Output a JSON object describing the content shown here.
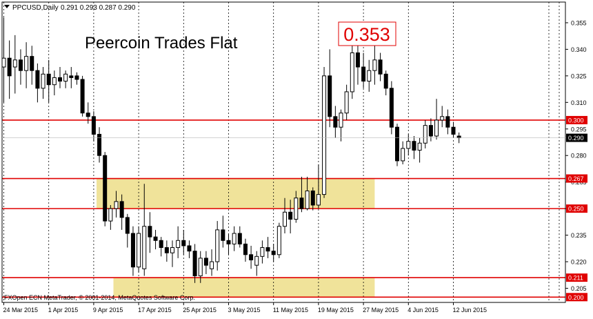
{
  "header": {
    "symbol_label": "PPCUSD,Daily",
    "ohlc_label": "0.291 0.293 0.287 0.290"
  },
  "annotation": {
    "title": "Peercoin Trades Flat",
    "high_label": "0.353"
  },
  "footer": {
    "copyright": "FXOpen ECN MetaTrader, © 2001-2014, MetaQuotes Software Corp."
  },
  "colors": {
    "background": "#ffffff",
    "candle_stroke": "#000000",
    "bull_body": "#ffffff",
    "bear_body": "#000000",
    "level_line": "#e00000",
    "zone_fill": "#f0e39a",
    "price_tag_bg": "#e00000",
    "current_price_bg": "#000000",
    "grid": "#000000"
  },
  "chart_data": {
    "type": "candlestick",
    "title": "Peercoin Trades Flat",
    "symbol": "PPCUSD",
    "timeframe": "Daily",
    "ylim": [
      0.197,
      0.362
    ],
    "y_ticks": [
      "0.355",
      "0.340",
      "0.325",
      "0.310",
      "0.295",
      "0.280",
      "0.265",
      "0.250",
      "0.235",
      "0.220",
      "0.205"
    ],
    "x_tick_labels": [
      "24 Mar 2015",
      "1 Apr 2015",
      "9 Apr 2015",
      "17 Apr 2015",
      "25 Apr 2015",
      "3 May 2015",
      "11 May 2015",
      "19 May 2015",
      "27 May 2015",
      "4 Jun 2015",
      "12 Jun 2015"
    ],
    "x_tick_index": [
      0,
      8,
      16,
      24,
      32,
      40,
      48,
      56,
      64,
      72,
      80
    ],
    "grid": "vertical dotted",
    "levels": [
      {
        "value": 0.3,
        "label": "0.300"
      },
      {
        "value": 0.267,
        "label": "0.267"
      },
      {
        "value": 0.25,
        "label": "0.250"
      },
      {
        "value": 0.211,
        "label": "0.211"
      },
      {
        "value": 0.2,
        "label": "0.200"
      }
    ],
    "zones": [
      {
        "low": 0.25,
        "high": 0.267,
        "from_index": 17,
        "to_index": 66
      },
      {
        "low": 0.2,
        "high": 0.211,
        "from_index": 20,
        "to_index": 66
      }
    ],
    "current_price": {
      "value": 0.29,
      "label": "0.290"
    },
    "candles": [
      {
        "date": "2015-03-24",
        "o": 0.33,
        "h": 0.358,
        "l": 0.31,
        "c": 0.335
      },
      {
        "date": "2015-03-25",
        "o": 0.335,
        "h": 0.345,
        "l": 0.312,
        "c": 0.325
      },
      {
        "date": "2015-03-26",
        "o": 0.33,
        "h": 0.348,
        "l": 0.315,
        "c": 0.334
      },
      {
        "date": "2015-03-27",
        "o": 0.334,
        "h": 0.34,
        "l": 0.32,
        "c": 0.328
      },
      {
        "date": "2015-03-28",
        "o": 0.328,
        "h": 0.344,
        "l": 0.318,
        "c": 0.336
      },
      {
        "date": "2015-03-29",
        "o": 0.336,
        "h": 0.342,
        "l": 0.32,
        "c": 0.328
      },
      {
        "date": "2015-03-30",
        "o": 0.328,
        "h": 0.332,
        "l": 0.31,
        "c": 0.318
      },
      {
        "date": "2015-03-31",
        "o": 0.318,
        "h": 0.33,
        "l": 0.312,
        "c": 0.326
      },
      {
        "date": "2015-04-01",
        "o": 0.326,
        "h": 0.334,
        "l": 0.31,
        "c": 0.32
      },
      {
        "date": "2015-04-02",
        "o": 0.32,
        "h": 0.328,
        "l": 0.314,
        "c": 0.324
      },
      {
        "date": "2015-04-03",
        "o": 0.324,
        "h": 0.33,
        "l": 0.318,
        "c": 0.322
      },
      {
        "date": "2015-04-04",
        "o": 0.322,
        "h": 0.328,
        "l": 0.318,
        "c": 0.326
      },
      {
        "date": "2015-04-05",
        "o": 0.325,
        "h": 0.33,
        "l": 0.318,
        "c": 0.324
      },
      {
        "date": "2015-04-06",
        "o": 0.325,
        "h": 0.327,
        "l": 0.32,
        "c": 0.323
      },
      {
        "date": "2015-04-07",
        "o": 0.323,
        "h": 0.325,
        "l": 0.302,
        "c": 0.304
      },
      {
        "date": "2015-04-08",
        "o": 0.304,
        "h": 0.31,
        "l": 0.298,
        "c": 0.302
      },
      {
        "date": "2015-04-09",
        "o": 0.302,
        "h": 0.305,
        "l": 0.288,
        "c": 0.292
      },
      {
        "date": "2015-04-10",
        "o": 0.292,
        "h": 0.296,
        "l": 0.276,
        "c": 0.28
      },
      {
        "date": "2015-04-11",
        "o": 0.28,
        "h": 0.282,
        "l": 0.24,
        "c": 0.243
      },
      {
        "date": "2015-04-12",
        "o": 0.243,
        "h": 0.252,
        "l": 0.238,
        "c": 0.25
      },
      {
        "date": "2015-04-13",
        "o": 0.25,
        "h": 0.26,
        "l": 0.245,
        "c": 0.254
      },
      {
        "date": "2015-04-14",
        "o": 0.254,
        "h": 0.258,
        "l": 0.238,
        "c": 0.245
      },
      {
        "date": "2015-04-15",
        "o": 0.245,
        "h": 0.247,
        "l": 0.228,
        "c": 0.236
      },
      {
        "date": "2015-04-16",
        "o": 0.236,
        "h": 0.24,
        "l": 0.212,
        "c": 0.217
      },
      {
        "date": "2015-04-17",
        "o": 0.217,
        "h": 0.24,
        "l": 0.214,
        "c": 0.236
      },
      {
        "date": "2015-04-18",
        "o": 0.216,
        "h": 0.264,
        "l": 0.212,
        "c": 0.24
      },
      {
        "date": "2015-04-19",
        "o": 0.24,
        "h": 0.248,
        "l": 0.225,
        "c": 0.234
      },
      {
        "date": "2015-04-20",
        "o": 0.234,
        "h": 0.238,
        "l": 0.227,
        "c": 0.232
      },
      {
        "date": "2015-04-21",
        "o": 0.232,
        "h": 0.234,
        "l": 0.223,
        "c": 0.228
      },
      {
        "date": "2015-04-22",
        "o": 0.228,
        "h": 0.232,
        "l": 0.22,
        "c": 0.225
      },
      {
        "date": "2015-04-23",
        "o": 0.225,
        "h": 0.232,
        "l": 0.217,
        "c": 0.228
      },
      {
        "date": "2015-04-24",
        "o": 0.228,
        "h": 0.24,
        "l": 0.222,
        "c": 0.232
      },
      {
        "date": "2015-04-25",
        "o": 0.232,
        "h": 0.238,
        "l": 0.224,
        "c": 0.229
      },
      {
        "date": "2015-04-26",
        "o": 0.229,
        "h": 0.232,
        "l": 0.222,
        "c": 0.226
      },
      {
        "date": "2015-04-27",
        "o": 0.226,
        "h": 0.23,
        "l": 0.208,
        "c": 0.212
      },
      {
        "date": "2015-04-28",
        "o": 0.212,
        "h": 0.226,
        "l": 0.208,
        "c": 0.222
      },
      {
        "date": "2015-04-29",
        "o": 0.222,
        "h": 0.226,
        "l": 0.213,
        "c": 0.218
      },
      {
        "date": "2015-04-30",
        "o": 0.216,
        "h": 0.227,
        "l": 0.212,
        "c": 0.22
      },
      {
        "date": "2015-05-01",
        "o": 0.22,
        "h": 0.243,
        "l": 0.215,
        "c": 0.238
      },
      {
        "date": "2015-05-02",
        "o": 0.238,
        "h": 0.246,
        "l": 0.228,
        "c": 0.232
      },
      {
        "date": "2015-05-03",
        "o": 0.232,
        "h": 0.236,
        "l": 0.224,
        "c": 0.23
      },
      {
        "date": "2015-05-04",
        "o": 0.23,
        "h": 0.24,
        "l": 0.226,
        "c": 0.236
      },
      {
        "date": "2015-05-05",
        "o": 0.236,
        "h": 0.24,
        "l": 0.228,
        "c": 0.23
      },
      {
        "date": "2015-05-06",
        "o": 0.23,
        "h": 0.233,
        "l": 0.22,
        "c": 0.224
      },
      {
        "date": "2015-05-07",
        "o": 0.224,
        "h": 0.229,
        "l": 0.216,
        "c": 0.221
      },
      {
        "date": "2015-05-08",
        "o": 0.218,
        "h": 0.226,
        "l": 0.212,
        "c": 0.223
      },
      {
        "date": "2015-05-09",
        "o": 0.223,
        "h": 0.232,
        "l": 0.219,
        "c": 0.228
      },
      {
        "date": "2015-05-10",
        "o": 0.228,
        "h": 0.234,
        "l": 0.222,
        "c": 0.226
      },
      {
        "date": "2015-05-11",
        "o": 0.226,
        "h": 0.23,
        "l": 0.22,
        "c": 0.224
      },
      {
        "date": "2015-05-12",
        "o": 0.224,
        "h": 0.242,
        "l": 0.222,
        "c": 0.24
      },
      {
        "date": "2015-05-13",
        "o": 0.24,
        "h": 0.256,
        "l": 0.236,
        "c": 0.248
      },
      {
        "date": "2015-05-14",
        "o": 0.248,
        "h": 0.255,
        "l": 0.236,
        "c": 0.244
      },
      {
        "date": "2015-05-15",
        "o": 0.244,
        "h": 0.26,
        "l": 0.242,
        "c": 0.256
      },
      {
        "date": "2015-05-16",
        "o": 0.256,
        "h": 0.268,
        "l": 0.248,
        "c": 0.25
      },
      {
        "date": "2015-05-17",
        "o": 0.25,
        "h": 0.268,
        "l": 0.249,
        "c": 0.26
      },
      {
        "date": "2015-05-18",
        "o": 0.26,
        "h": 0.262,
        "l": 0.249,
        "c": 0.252
      },
      {
        "date": "2015-05-19",
        "o": 0.252,
        "h": 0.275,
        "l": 0.25,
        "c": 0.258
      },
      {
        "date": "2015-05-20",
        "o": 0.258,
        "h": 0.33,
        "l": 0.256,
        "c": 0.325
      },
      {
        "date": "2015-05-21",
        "o": 0.325,
        "h": 0.34,
        "l": 0.296,
        "c": 0.302
      },
      {
        "date": "2015-05-22",
        "o": 0.302,
        "h": 0.308,
        "l": 0.29,
        "c": 0.296
      },
      {
        "date": "2015-05-23",
        "o": 0.296,
        "h": 0.306,
        "l": 0.288,
        "c": 0.304
      },
      {
        "date": "2015-05-24",
        "o": 0.304,
        "h": 0.32,
        "l": 0.3,
        "c": 0.316
      },
      {
        "date": "2015-05-25",
        "o": 0.316,
        "h": 0.353,
        "l": 0.312,
        "c": 0.338
      },
      {
        "date": "2015-05-26",
        "o": 0.338,
        "h": 0.345,
        "l": 0.32,
        "c": 0.33
      },
      {
        "date": "2015-05-27",
        "o": 0.33,
        "h": 0.338,
        "l": 0.318,
        "c": 0.322
      },
      {
        "date": "2015-05-28",
        "o": 0.322,
        "h": 0.334,
        "l": 0.316,
        "c": 0.328
      },
      {
        "date": "2015-05-29",
        "o": 0.328,
        "h": 0.342,
        "l": 0.32,
        "c": 0.334
      },
      {
        "date": "2015-05-30",
        "o": 0.334,
        "h": 0.338,
        "l": 0.322,
        "c": 0.326
      },
      {
        "date": "2015-05-31",
        "o": 0.326,
        "h": 0.328,
        "l": 0.314,
        "c": 0.318
      },
      {
        "date": "2015-06-01",
        "o": 0.318,
        "h": 0.322,
        "l": 0.292,
        "c": 0.296
      },
      {
        "date": "2015-06-02",
        "o": 0.296,
        "h": 0.298,
        "l": 0.274,
        "c": 0.277
      },
      {
        "date": "2015-06-03",
        "o": 0.277,
        "h": 0.288,
        "l": 0.275,
        "c": 0.284
      },
      {
        "date": "2015-06-04",
        "o": 0.284,
        "h": 0.292,
        "l": 0.28,
        "c": 0.288
      },
      {
        "date": "2015-06-05",
        "o": 0.288,
        "h": 0.291,
        "l": 0.278,
        "c": 0.283
      },
      {
        "date": "2015-06-06",
        "o": 0.283,
        "h": 0.29,
        "l": 0.276,
        "c": 0.287
      },
      {
        "date": "2015-06-07",
        "o": 0.287,
        "h": 0.3,
        "l": 0.284,
        "c": 0.297
      },
      {
        "date": "2015-06-08",
        "o": 0.297,
        "h": 0.301,
        "l": 0.288,
        "c": 0.291
      },
      {
        "date": "2015-06-09",
        "o": 0.291,
        "h": 0.312,
        "l": 0.289,
        "c": 0.3
      },
      {
        "date": "2015-06-10",
        "o": 0.3,
        "h": 0.308,
        "l": 0.296,
        "c": 0.302
      },
      {
        "date": "2015-06-11",
        "o": 0.302,
        "h": 0.306,
        "l": 0.292,
        "c": 0.296
      },
      {
        "date": "2015-06-12",
        "o": 0.296,
        "h": 0.299,
        "l": 0.29,
        "c": 0.292
      },
      {
        "date": "2015-06-13",
        "o": 0.291,
        "h": 0.293,
        "l": 0.287,
        "c": 0.29
      }
    ]
  }
}
